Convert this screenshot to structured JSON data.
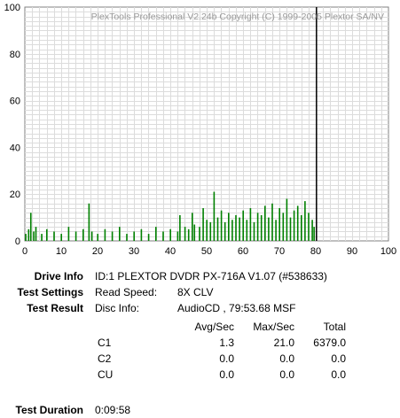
{
  "chart_data": {
    "type": "bar",
    "title": "PlexTools Professional V2.24b Copyright (C) 1999-2005 Plextor SA/NV",
    "xlim": [
      0,
      100
    ],
    "ylim": [
      0,
      100
    ],
    "x_ticks": [
      "0",
      "10",
      "20",
      "30",
      "40",
      "50",
      "60",
      "70",
      "80",
      "90",
      "100"
    ],
    "y_ticks": [
      "100",
      "80",
      "60",
      "40",
      "20",
      "0"
    ],
    "grid": true,
    "minor_grid_step": 2,
    "series": [
      {
        "color": "#008000",
        "x": [
          0.2,
          1.0,
          1.6,
          2.4,
          3.0,
          4.6,
          6.0,
          8.0,
          10.0,
          12.0,
          14.0,
          16.0,
          17.6,
          18.4,
          20.0,
          22.0,
          24.0,
          26.0,
          28.0,
          30.0,
          32.0,
          34.0,
          36.0,
          38.0,
          40.0,
          42.0,
          42.6,
          44.0,
          45.0,
          46.0,
          46.6,
          48.0,
          49.0,
          50.0,
          51.0,
          52.0,
          53.0,
          54.0,
          55.0,
          56.0,
          57.0,
          58.0,
          59.0,
          60.0,
          61.0,
          62.0,
          63.0,
          64.0,
          65.0,
          66.0,
          67.0,
          68.0,
          69.0,
          70.0,
          71.0,
          72.0,
          73.0,
          74.0,
          75.0,
          76.0,
          77.0,
          78.0,
          79.0,
          79.5
        ],
        "values": [
          3,
          5,
          12,
          4,
          6,
          3,
          5,
          4,
          3,
          6,
          4,
          5,
          16,
          4,
          3,
          5,
          4,
          6,
          3,
          4,
          5,
          3,
          6,
          4,
          5,
          4,
          11,
          6,
          5,
          12,
          7,
          6,
          14,
          9,
          8,
          21,
          10,
          13,
          8,
          12,
          9,
          11,
          10,
          13,
          9,
          14,
          8,
          12,
          11,
          15,
          10,
          16,
          9,
          14,
          12,
          18,
          10,
          13,
          15,
          11,
          17,
          12,
          9,
          6
        ]
      }
    ],
    "end_marker_x": 80.2
  },
  "info": {
    "labels": {
      "drive_info": "Drive Info",
      "test_settings": "Test Settings",
      "test_result": "Test Result",
      "test_duration": "Test Duration"
    },
    "drive_info": "ID:1 PLEXTOR DVDR PX-716A V1.07 (#538633)",
    "read_speed_label": "Read Speed:",
    "read_speed_value": "8X CLV",
    "disc_info_label": "Disc Info:",
    "disc_info_value": "AudioCD , 79:53.68 MSF",
    "test_duration": "0:09:58",
    "table": {
      "headers": [
        "Avg/Sec",
        "Max/Sec",
        "Total"
      ],
      "rows": [
        {
          "name": "C1",
          "avg": "1.3",
          "max": "21.0",
          "total": "6379.0"
        },
        {
          "name": "C2",
          "avg": "0.0",
          "max": "0.0",
          "total": "0.0"
        },
        {
          "name": "CU",
          "avg": "0.0",
          "max": "0.0",
          "total": "0.0"
        }
      ]
    }
  }
}
